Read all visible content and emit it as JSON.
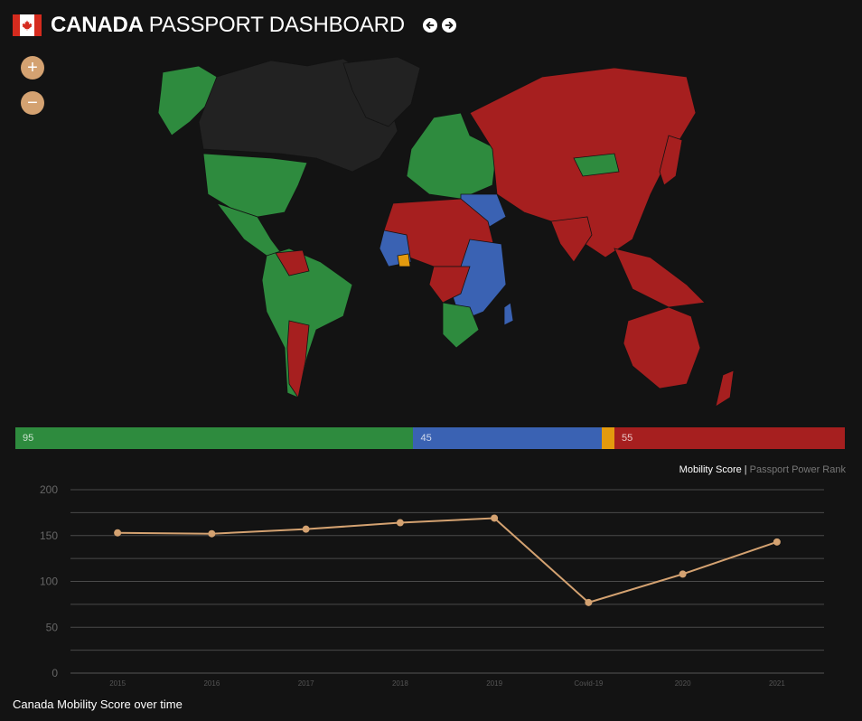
{
  "header": {
    "country": "CANADA",
    "title_rest": "PASSPORT DASHBOARD"
  },
  "zoom": {
    "in_label": "+",
    "out_label": "−"
  },
  "distribution": [
    {
      "value": 95,
      "label": "95",
      "color": "#2e8b3e"
    },
    {
      "value": 45,
      "label": "45",
      "color": "#3a62b3"
    },
    {
      "value": 3,
      "label": "",
      "color": "#e39a0e"
    },
    {
      "value": 55,
      "label": "55",
      "color": "#a61f1f"
    }
  ],
  "toggle": {
    "active": "Mobility Score",
    "separator": "|",
    "inactive": "Passport Power Rank"
  },
  "map_colors": {
    "visa_free": "#2e8b3e",
    "visa_on_arrival": "#3a62b3",
    "eta": "#e39a0e",
    "visa_required": "#a61f1f",
    "home": "#222222"
  },
  "chart_data": {
    "type": "line",
    "categories": [
      "2015",
      "2016",
      "2017",
      "2018",
      "2019",
      "Covid-19",
      "2020",
      "2021"
    ],
    "values": [
      153,
      152,
      157,
      164,
      169,
      77,
      108,
      143
    ],
    "yticks": [
      0,
      50,
      100,
      150,
      200
    ],
    "ylim": [
      0,
      200
    ],
    "grid": true,
    "line_color": "#d4a271"
  },
  "caption": "Canada Mobility Score over time"
}
